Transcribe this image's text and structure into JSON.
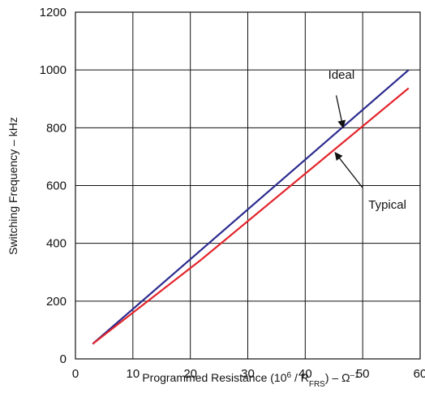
{
  "chart_data": {
    "type": "line",
    "xlabel": {
      "base": "Programmed Resistance (10",
      "sup1": "6",
      "mid": " / R",
      "sub": "FRS",
      "after": ") – Ω",
      "sup2": "–1"
    },
    "ylabel": "Switching Frequency – kHz",
    "xlim": [
      0,
      60
    ],
    "ylim": [
      0,
      1200
    ],
    "x_ticks": [
      "0",
      "10",
      "20",
      "30",
      "40",
      "50",
      "60"
    ],
    "y_ticks": [
      "0",
      "200",
      "400",
      "600",
      "800",
      "1000",
      "1200"
    ],
    "grid": true,
    "series": [
      {
        "name": "Ideal",
        "color": "#2b2b8f",
        "x": [
          3,
          58
        ],
        "y": [
          52,
          1000
        ]
      },
      {
        "name": "Typical",
        "color": "#e3242b",
        "x": [
          3,
          22,
          58
        ],
        "y": [
          52,
          345,
          937
        ]
      }
    ],
    "annotations": [
      {
        "text": "Ideal",
        "series": "Ideal",
        "label_at": [
          44,
          970
        ],
        "arrow_from": [
          45.4,
          912
        ],
        "arrow_to": [
          46.6,
          800
        ]
      },
      {
        "text": "Typical",
        "series": "Typical",
        "label_at": [
          51,
          520
        ],
        "arrow_from": [
          50,
          592
        ],
        "arrow_to": [
          45.2,
          714
        ]
      }
    ]
  }
}
